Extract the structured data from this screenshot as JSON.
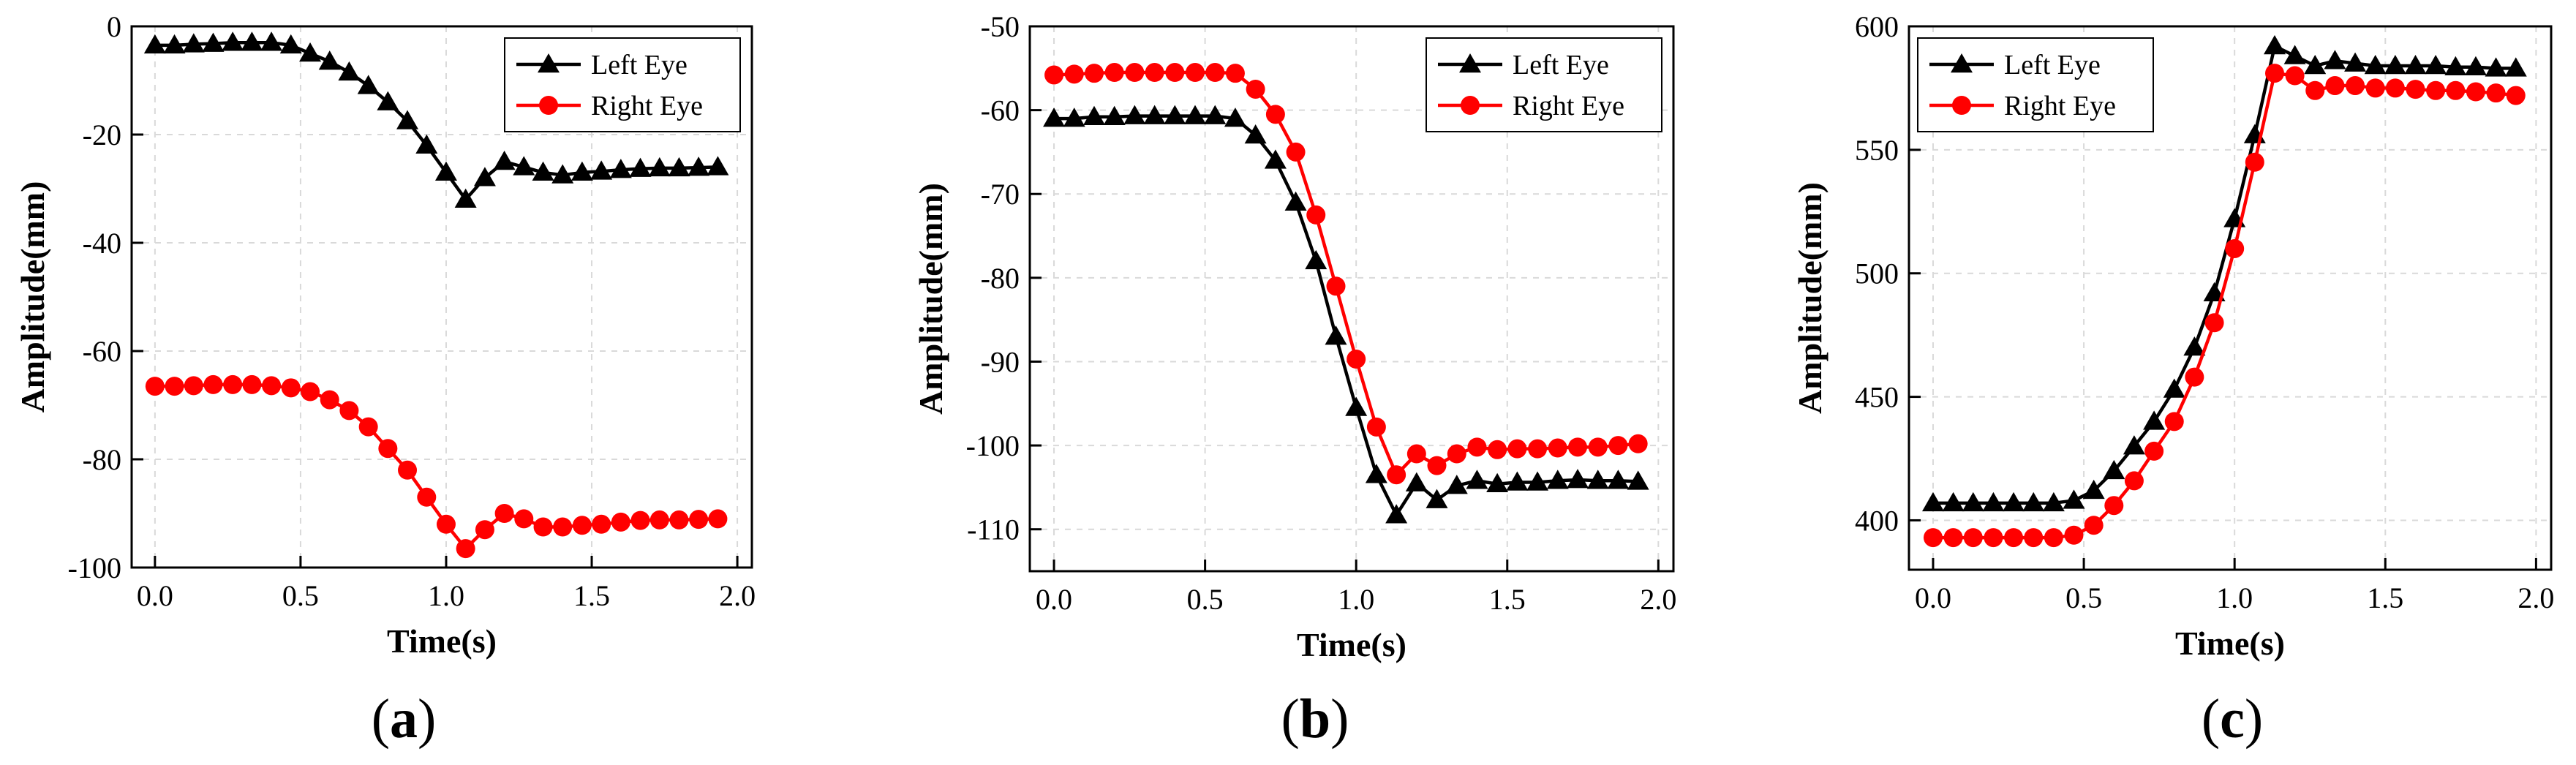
{
  "chart_data": [
    {
      "type": "line",
      "panel_label": "(a)",
      "panel_letter": "a",
      "xlabel": "Time(s)",
      "ylabel": "Amplitude(mm)",
      "xlim": [
        -0.08,
        2.05
      ],
      "ylim": [
        -100,
        0
      ],
      "xticks": [
        0.0,
        0.5,
        1.0,
        1.5,
        2.0
      ],
      "xtick_labels": [
        "0.0",
        "0.5",
        "1.0",
        "1.5",
        "2.0"
      ],
      "yticks": [
        -100,
        -80,
        -60,
        -40,
        -20,
        0
      ],
      "ytick_labels": [
        "-100",
        "-80",
        "-60",
        "-40",
        "-20",
        "0"
      ],
      "grid": true,
      "legend_position": "top-right",
      "series": [
        {
          "name": "Left Eye",
          "color": "#000000",
          "marker": "triangle",
          "x": [
            0,
            0.067,
            0.133,
            0.2,
            0.267,
            0.333,
            0.4,
            0.467,
            0.533,
            0.6,
            0.667,
            0.733,
            0.8,
            0.867,
            0.933,
            1.0,
            1.067,
            1.133,
            1.2,
            1.267,
            1.333,
            1.4,
            1.467,
            1.533,
            1.6,
            1.667,
            1.733,
            1.8,
            1.867,
            1.933
          ],
          "y": [
            -3.5,
            -3.5,
            -3.3,
            -3.2,
            -3.0,
            -3.0,
            -3.0,
            -3.5,
            -5,
            -6.5,
            -8.5,
            -11,
            -14,
            -17.5,
            -22,
            -27,
            -32,
            -28,
            -25,
            -26,
            -27,
            -27.5,
            -27,
            -26.8,
            -26.5,
            -26.3,
            -26.2,
            -26.2,
            -26.1,
            -26
          ]
        },
        {
          "name": "Right Eye",
          "color": "#ff0000",
          "marker": "circle",
          "x": [
            0,
            0.067,
            0.133,
            0.2,
            0.267,
            0.333,
            0.4,
            0.467,
            0.533,
            0.6,
            0.667,
            0.733,
            0.8,
            0.867,
            0.933,
            1.0,
            1.067,
            1.133,
            1.2,
            1.267,
            1.333,
            1.4,
            1.467,
            1.533,
            1.6,
            1.667,
            1.733,
            1.8,
            1.867,
            1.933
          ],
          "y": [
            -66.5,
            -66.5,
            -66.4,
            -66.2,
            -66.2,
            -66.2,
            -66.4,
            -66.8,
            -67.5,
            -69,
            -71,
            -74,
            -78,
            -82,
            -87,
            -92,
            -96.5,
            -93,
            -90,
            -91,
            -92.5,
            -92.5,
            -92.2,
            -92,
            -91.6,
            -91.3,
            -91.2,
            -91.2,
            -91.1,
            -91
          ]
        }
      ]
    },
    {
      "type": "line",
      "panel_label": "(b)",
      "panel_letter": "b",
      "xlabel": "Time(s)",
      "ylabel": "Amplitude(mm)",
      "xlim": [
        -0.08,
        2.05
      ],
      "ylim": [
        -115,
        -50
      ],
      "xticks": [
        0.0,
        0.5,
        1.0,
        1.5,
        2.0
      ],
      "xtick_labels": [
        "0.0",
        "0.5",
        "1.0",
        "1.5",
        "2.0"
      ],
      "yticks": [
        -110,
        -100,
        -90,
        -80,
        -70,
        -60,
        -50
      ],
      "ytick_labels": [
        "-110",
        "-100",
        "-90",
        "-80",
        "-70",
        "-60",
        "-50"
      ],
      "grid": true,
      "legend_position": "top-right",
      "series": [
        {
          "name": "Left Eye",
          "color": "#000000",
          "marker": "triangle",
          "x": [
            0,
            0.067,
            0.133,
            0.2,
            0.267,
            0.333,
            0.4,
            0.467,
            0.533,
            0.6,
            0.667,
            0.733,
            0.8,
            0.867,
            0.933,
            1.0,
            1.067,
            1.133,
            1.2,
            1.267,
            1.333,
            1.4,
            1.467,
            1.533,
            1.6,
            1.667,
            1.733,
            1.8,
            1.867,
            1.933
          ],
          "y": [
            -61,
            -61,
            -60.8,
            -60.8,
            -60.7,
            -60.7,
            -60.7,
            -60.7,
            -60.7,
            -61,
            -63,
            -66,
            -71,
            -78,
            -87,
            -95.5,
            -103.5,
            -108.3,
            -104.5,
            -106.5,
            -104.8,
            -104.2,
            -104.6,
            -104.4,
            -104.4,
            -104.2,
            -104.1,
            -104.2,
            -104.2,
            -104.3
          ]
        },
        {
          "name": "Right Eye",
          "color": "#ff0000",
          "marker": "circle",
          "x": [
            0,
            0.067,
            0.133,
            0.2,
            0.267,
            0.333,
            0.4,
            0.467,
            0.533,
            0.6,
            0.667,
            0.733,
            0.8,
            0.867,
            0.933,
            1.0,
            1.067,
            1.133,
            1.2,
            1.267,
            1.333,
            1.4,
            1.467,
            1.533,
            1.6,
            1.667,
            1.733,
            1.8,
            1.867,
            1.933
          ],
          "y": [
            -55.8,
            -55.7,
            -55.6,
            -55.5,
            -55.5,
            -55.5,
            -55.5,
            -55.5,
            -55.5,
            -55.6,
            -57.5,
            -60.5,
            -65,
            -72.5,
            -81,
            -89.7,
            -97.8,
            -103.5,
            -101,
            -102.4,
            -101,
            -100.2,
            -100.5,
            -100.4,
            -100.4,
            -100.3,
            -100.2,
            -100.2,
            -100,
            -99.8
          ]
        }
      ]
    },
    {
      "type": "line",
      "panel_label": "(c)",
      "panel_letter": "c",
      "xlabel": "Time(s)",
      "ylabel": "Amplitude(mm)",
      "xlim": [
        -0.08,
        2.05
      ],
      "ylim": [
        380,
        600
      ],
      "xticks": [
        0.0,
        0.5,
        1.0,
        1.5,
        2.0
      ],
      "xtick_labels": [
        "0.0",
        "0.5",
        "1.0",
        "1.5",
        "2.0"
      ],
      "yticks": [
        400,
        450,
        500,
        550,
        600
      ],
      "ytick_labels": [
        "400",
        "450",
        "500",
        "550",
        "600"
      ],
      "grid": true,
      "legend_position": "top-left",
      "series": [
        {
          "name": "Left Eye",
          "color": "#000000",
          "marker": "triangle",
          "x": [
            0,
            0.067,
            0.133,
            0.2,
            0.267,
            0.333,
            0.4,
            0.467,
            0.533,
            0.6,
            0.667,
            0.733,
            0.8,
            0.867,
            0.933,
            1.0,
            1.067,
            1.133,
            1.2,
            1.267,
            1.333,
            1.4,
            1.467,
            1.533,
            1.6,
            1.667,
            1.733,
            1.8,
            1.867,
            1.933
          ],
          "y": [
            407,
            407,
            407,
            407,
            407,
            407,
            407,
            408,
            412,
            420,
            430,
            440,
            453,
            470,
            492,
            522,
            556,
            592,
            588,
            584,
            586,
            585,
            584,
            584,
            584,
            584,
            583.5,
            583.5,
            583,
            583
          ]
        },
        {
          "name": "Right Eye",
          "color": "#ff0000",
          "marker": "circle",
          "x": [
            0,
            0.067,
            0.133,
            0.2,
            0.267,
            0.333,
            0.4,
            0.467,
            0.533,
            0.6,
            0.667,
            0.733,
            0.8,
            0.867,
            0.933,
            1.0,
            1.067,
            1.133,
            1.2,
            1.267,
            1.333,
            1.4,
            1.467,
            1.533,
            1.6,
            1.667,
            1.733,
            1.8,
            1.867,
            1.933
          ],
          "y": [
            393,
            393,
            393,
            393,
            393,
            393,
            393,
            394,
            398,
            406,
            416,
            428,
            440,
            458,
            480,
            510,
            545,
            581,
            580,
            574,
            576,
            576,
            575,
            575,
            574.5,
            574,
            574,
            573.5,
            573,
            572
          ]
        }
      ]
    }
  ]
}
